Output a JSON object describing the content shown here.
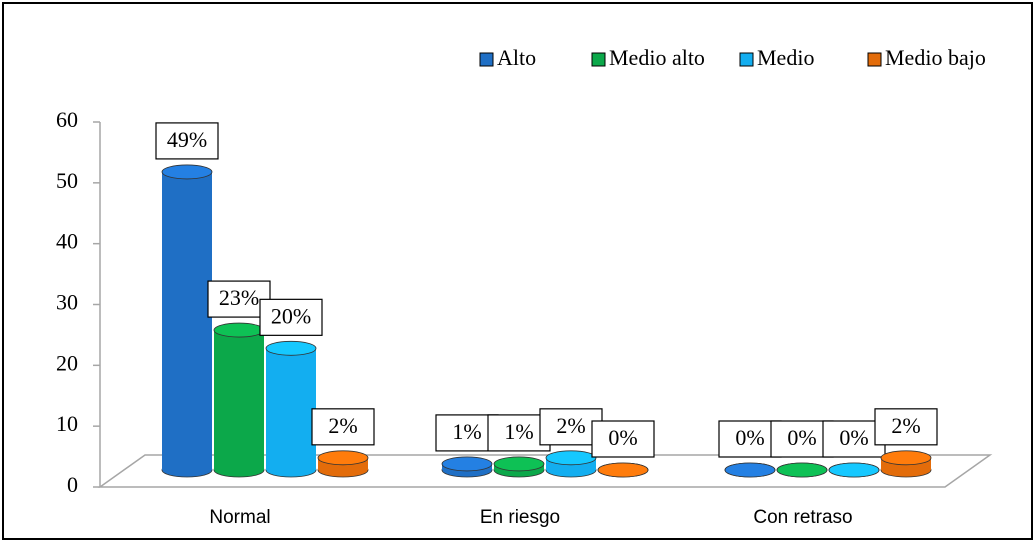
{
  "chart_data": {
    "type": "bar",
    "categories": [
      "Normal",
      "En riesgo",
      "Con retraso"
    ],
    "series": [
      {
        "name": "Alto",
        "color": "#1f6fc5",
        "values": [
          49,
          1,
          0
        ],
        "value_labels": [
          "49%",
          "1%",
          "0%"
        ]
      },
      {
        "name": "Medio alto",
        "color": "#0ca84a",
        "values": [
          23,
          1,
          0
        ],
        "value_labels": [
          "23%",
          "1%",
          "0%"
        ]
      },
      {
        "name": "Medio",
        "color": "#13aef0",
        "values": [
          20,
          2,
          0
        ],
        "value_labels": [
          "20%",
          "2%",
          "0%"
        ]
      },
      {
        "name": "Medio bajo",
        "color": "#e36c0a",
        "values": [
          2,
          0,
          2
        ],
        "value_labels": [
          "2%",
          "0%",
          "2%"
        ]
      }
    ],
    "ylim": [
      0,
      60
    ],
    "yticks": [
      0,
      10,
      20,
      30,
      40,
      50,
      60
    ],
    "grid": false,
    "legend": "top-right"
  }
}
